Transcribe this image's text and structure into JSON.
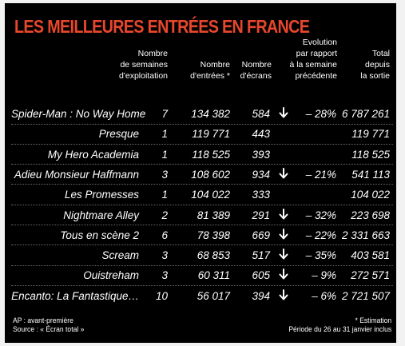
{
  "title": "LES MEILLEURES ENTRÉES EN FRANCE",
  "headers": {
    "weeks": "Nombre\nde semaines\nd'exploitation",
    "entries": "Nombre\nd'entrées *",
    "screens": "Nombre\nd'écrans",
    "evolution": "Evolution\npar rapport\nà la semaine\nprécédente",
    "total": "Total\ndepuis\nla sortie"
  },
  "rows": [
    {
      "film": "Spider-Man : No Way Home",
      "weeks": "7",
      "entries": "134 382",
      "screens": "584",
      "arrow": true,
      "evolution": "– 28%",
      "total": "6 787 261"
    },
    {
      "film": "Presque",
      "weeks": "1",
      "entries": "119 771",
      "screens": "443",
      "arrow": false,
      "evolution": "",
      "total": "119 771"
    },
    {
      "film": "My Hero Academia",
      "weeks": "1",
      "entries": "118 525",
      "screens": "393",
      "arrow": false,
      "evolution": "",
      "total": "118 525"
    },
    {
      "film": "Adieu Monsieur Haffmann",
      "weeks": "3",
      "entries": "108 602",
      "screens": "934",
      "arrow": true,
      "evolution": "– 21%",
      "total": "541 113"
    },
    {
      "film": "Les Promesses",
      "weeks": "1",
      "entries": "104 022",
      "screens": "333",
      "arrow": false,
      "evolution": "",
      "total": "104 022"
    },
    {
      "film": "Nightmare Alley",
      "weeks": "2",
      "entries": "81 389",
      "screens": "291",
      "arrow": true,
      "evolution": "– 32%",
      "total": "223 698"
    },
    {
      "film": "Tous en scène 2",
      "weeks": "6",
      "entries": "78 398",
      "screens": "669",
      "arrow": true,
      "evolution": "– 22%",
      "total": "2 331 663"
    },
    {
      "film": "Scream",
      "weeks": "3",
      "entries": "68 853",
      "screens": "517",
      "arrow": true,
      "evolution": "– 35%",
      "total": "403 581"
    },
    {
      "film": "Ouistreham",
      "weeks": "3",
      "entries": "60 311",
      "screens": "605",
      "arrow": true,
      "evolution": "– 9%",
      "total": "272 571"
    },
    {
      "film": "Encanto: La Fantastique…",
      "weeks": "10",
      "entries": "56 017",
      "screens": "394",
      "arrow": true,
      "evolution": "– 6%",
      "total": "2 721 507"
    }
  ],
  "footer": {
    "left_line1": "AP : avant-première",
    "left_line2": "Source : « Écran total »",
    "right_line1": "* Estimation",
    "right_line2": "Période du 26 au 31 janvier inclus"
  },
  "colors": {
    "title": "#e8472c",
    "background": "#000000",
    "text": "#ffffff"
  },
  "icons": {
    "evolution_marker": "arrow-down-icon"
  }
}
